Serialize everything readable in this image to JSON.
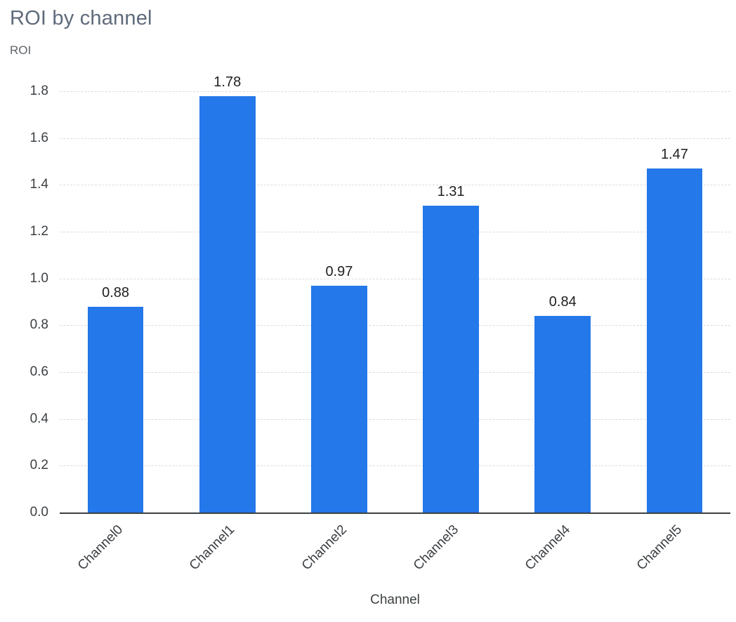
{
  "chart_data": {
    "type": "bar",
    "title": "ROI by channel",
    "xlabel": "Channel",
    "ylabel": "ROI",
    "categories": [
      "Channel0",
      "Channel1",
      "Channel2",
      "Channel3",
      "Channel4",
      "Channel5"
    ],
    "values": [
      0.88,
      1.78,
      0.97,
      1.31,
      0.84,
      1.47
    ],
    "value_labels": [
      "0.88",
      "1.78",
      "0.97",
      "1.31",
      "0.84",
      "1.47"
    ],
    "ylim": [
      0,
      1.8
    ],
    "ytick_step": 0.2,
    "grid": "horizontal-dashed",
    "legend": "none",
    "colors": {
      "bar": "#2478EA",
      "title": "#5F6B7A",
      "axis_label": "#5F6368",
      "tick_label": "#3C4043",
      "value_label": "#1F1F1F",
      "gridline": "#D8DBDE",
      "axis_line": "#3C4043",
      "background": "#FFFFFF"
    }
  }
}
